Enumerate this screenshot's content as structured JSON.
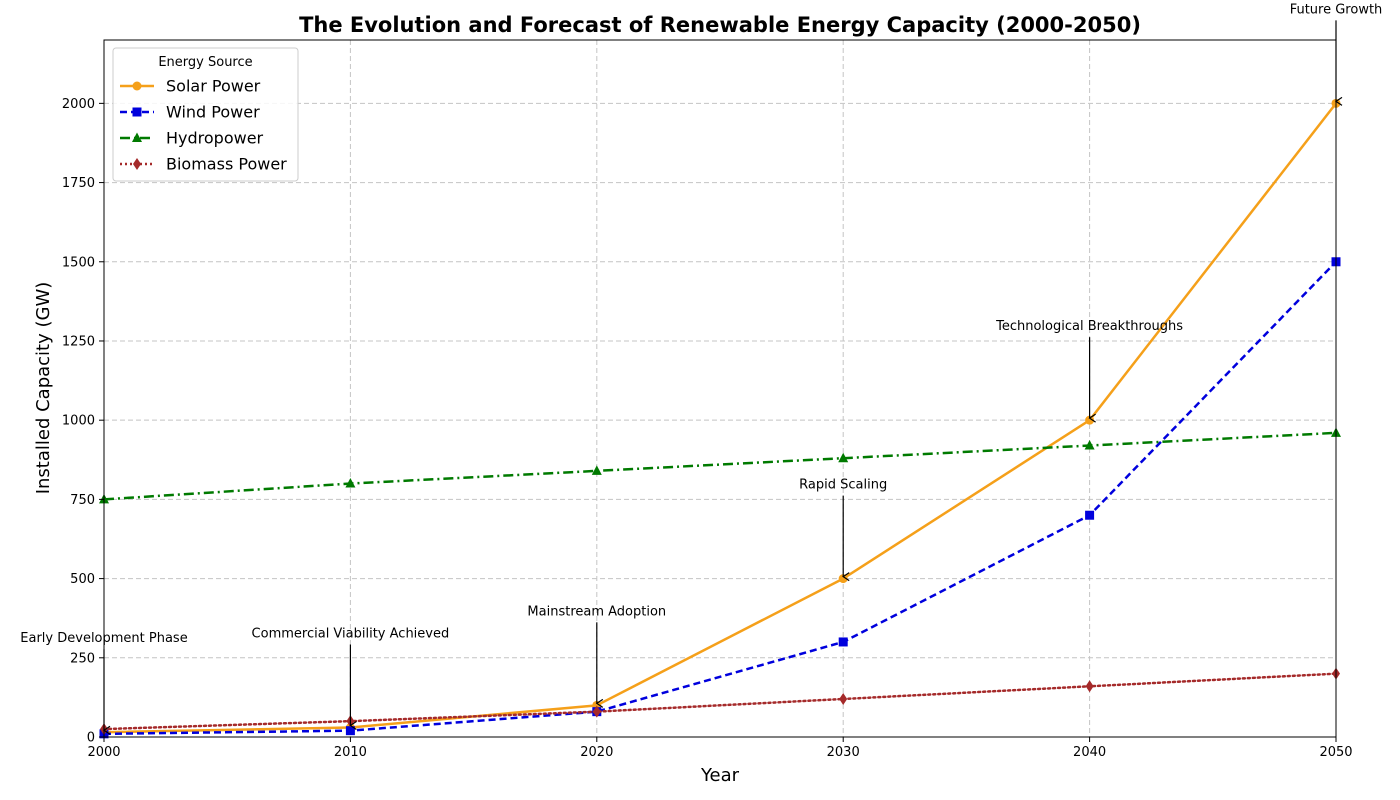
{
  "chart_data": {
    "type": "line",
    "title": "The Evolution and Forecast of Renewable Energy Capacity (2000-2050)",
    "xlabel": "Year",
    "ylabel": "Installed Capacity (GW)",
    "xlim": [
      2000,
      2050
    ],
    "ylim": [
      0,
      2200
    ],
    "x": [
      2000,
      2010,
      2020,
      2030,
      2040,
      2050
    ],
    "xticks": [
      "2000",
      "2010",
      "2020",
      "2030",
      "2040",
      "2050"
    ],
    "yticks": [
      "0",
      "250",
      "500",
      "750",
      "1000",
      "1250",
      "1500",
      "1750",
      "2000"
    ],
    "grid": true,
    "legend": {
      "title": "Energy Source",
      "placement": "top-left"
    },
    "series": [
      {
        "name": "Solar Power",
        "values": [
          15,
          30,
          100,
          500,
          1000,
          2000
        ],
        "color": "#f5a01a",
        "line_style": "solid",
        "marker": "circle"
      },
      {
        "name": "Wind Power",
        "values": [
          10,
          20,
          80,
          300,
          700,
          1500
        ],
        "color": "#0000dd",
        "line_style": "dashed",
        "marker": "square"
      },
      {
        "name": "Hydropower",
        "values": [
          750,
          800,
          840,
          880,
          920,
          960
        ],
        "color": "#007a00",
        "line_style": "dashdot",
        "marker": "triangle"
      },
      {
        "name": "Biomass Power",
        "values": [
          25,
          50,
          80,
          120,
          160,
          200
        ],
        "color": "#a52a2a",
        "line_style": "dotted",
        "marker": "diamond"
      }
    ],
    "annotations": [
      {
        "text": "Early Development Phase",
        "x": 2000,
        "y": 15
      },
      {
        "text": "Commercial Viability Achieved",
        "x": 2010,
        "y": 30
      },
      {
        "text": "Mainstream Adoption",
        "x": 2020,
        "y": 100
      },
      {
        "text": "Rapid Scaling",
        "x": 2030,
        "y": 500
      },
      {
        "text": "Technological Breakthroughs",
        "x": 2040,
        "y": 1000
      },
      {
        "text": "Future Growth",
        "x": 2050,
        "y": 2000
      }
    ]
  }
}
